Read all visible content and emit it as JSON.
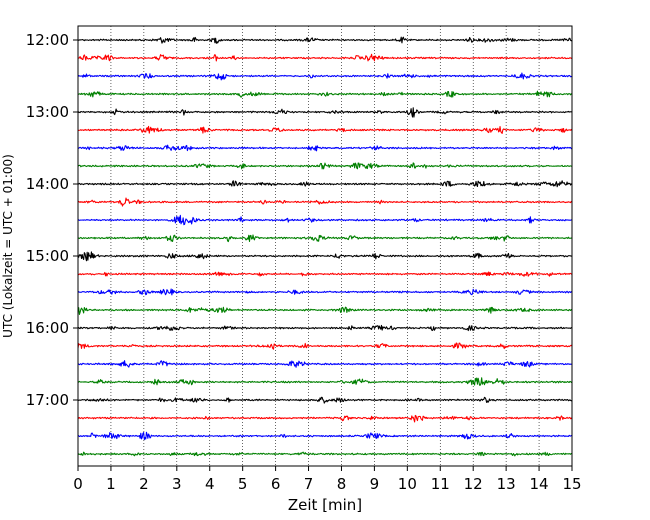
{
  "chart_data": {
    "type": "line",
    "chart_kind": "helicorder (seismogram drum plot)",
    "xlabel": "Zeit  [min]",
    "ylabel": "UTC (Lokalzeit = UTC + 01:00)",
    "xlim": [
      0,
      15
    ],
    "x_ticks": [
      "0",
      "1",
      "2",
      "3",
      "4",
      "5",
      "6",
      "7",
      "8",
      "9",
      "10",
      "11",
      "12",
      "13",
      "14",
      "15"
    ],
    "y_tick_labels": [
      "12:00",
      "13:00",
      "14:00",
      "15:00",
      "16:00",
      "17:00"
    ],
    "traces_per_hour": 4,
    "minutes_per_trace": 15,
    "trace_starts": [
      "12:00",
      "12:15",
      "12:30",
      "12:45",
      "13:00",
      "13:15",
      "13:30",
      "13:45",
      "14:00",
      "14:15",
      "14:30",
      "14:45",
      "15:00",
      "15:15",
      "15:30",
      "15:45",
      "16:00",
      "16:15",
      "16:30",
      "16:45",
      "17:00",
      "17:15",
      "17:30",
      "17:45"
    ],
    "trace_color_cycle": [
      "#000000",
      "#ff0000",
      "#0000ff",
      "#008000"
    ],
    "grid": "vertical dotted lines at each minute",
    "signal": "continuous low-amplitude background noise on every trace"
  }
}
